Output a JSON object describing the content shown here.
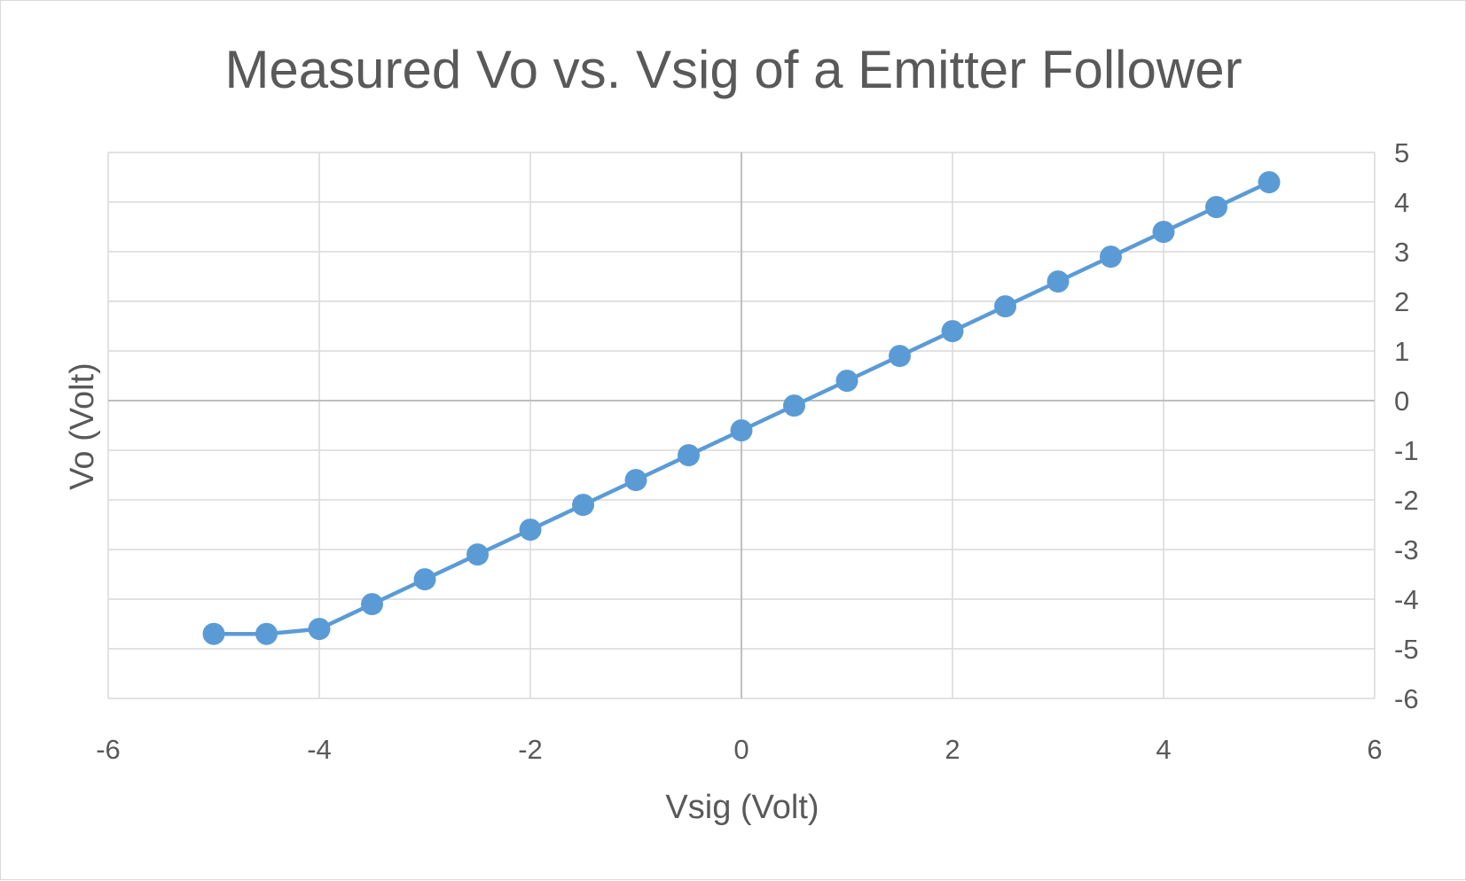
{
  "chart_data": {
    "type": "line",
    "title": "Measured Vo vs. Vsig of a Emitter Follower",
    "xlabel": "Vsig (Volt)",
    "ylabel": "Vo (Volt)",
    "xlim": [
      -6,
      6
    ],
    "ylim": [
      -6,
      5
    ],
    "xticks": [
      -6,
      -4,
      -2,
      0,
      2,
      4,
      6
    ],
    "yticks": [
      5,
      4,
      3,
      2,
      1,
      0,
      -1,
      -2,
      -3,
      -4,
      -5,
      -6
    ],
    "y_axis_side": "right",
    "grid": true,
    "legend": "none",
    "series_color": "#5B9BD5",
    "series": [
      {
        "x": [
          -5,
          -4.5,
          -4,
          -3.5,
          -3,
          -2.5,
          -2,
          -1.5,
          -1,
          -0.5,
          0,
          0.5,
          1,
          1.5,
          2,
          2.5,
          3,
          3.5,
          4,
          4.5,
          5
        ],
        "y": [
          -4.7,
          -4.7,
          -4.6,
          -4.1,
          -3.6,
          -3.1,
          -2.6,
          -2.1,
          -1.6,
          -1.1,
          -0.6,
          -0.1,
          0.4,
          0.9,
          1.4,
          1.9,
          2.4,
          2.9,
          3.4,
          3.9,
          4.4
        ]
      }
    ]
  }
}
